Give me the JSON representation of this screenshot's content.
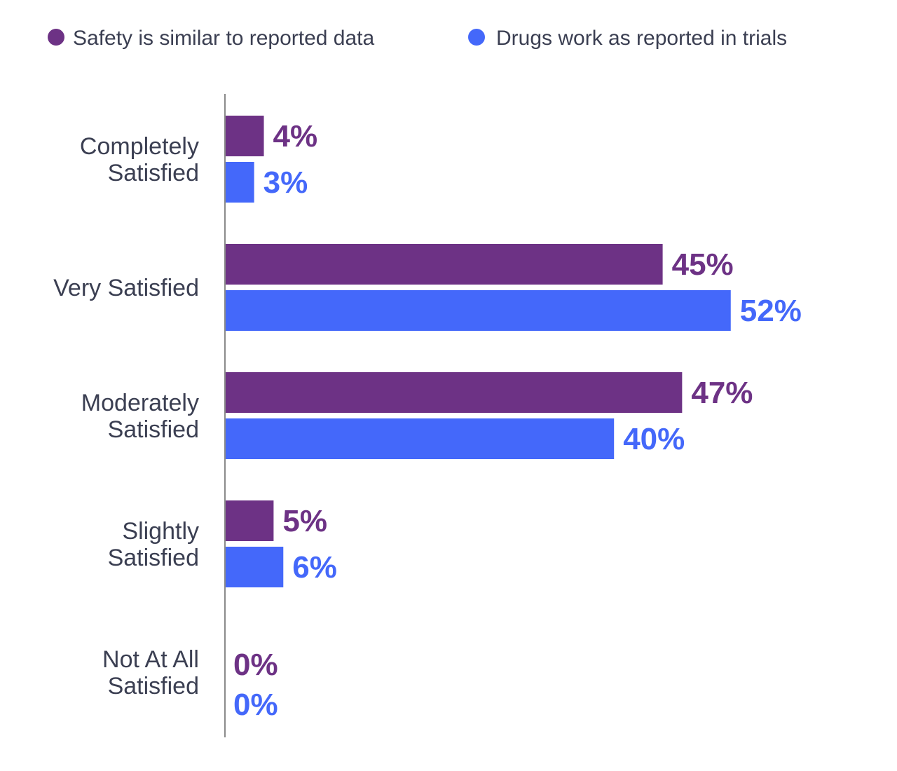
{
  "chart_data": {
    "type": "bar",
    "orientation": "horizontal",
    "categories": [
      [
        "Completely",
        "Satisfied"
      ],
      [
        "Very Satisfied"
      ],
      [
        "Moderately",
        "Satisfied"
      ],
      [
        "Slightly",
        "Satisfied"
      ],
      [
        "Not At All",
        "Satisfied"
      ]
    ],
    "series": [
      {
        "name": "Safety is similar to reported data",
        "color": "#6d3285",
        "values": [
          4,
          45,
          47,
          5,
          0
        ],
        "labels": [
          "4%",
          "45%",
          "47%",
          "5%",
          "0%"
        ]
      },
      {
        "name": "Drugs work as reported in trials",
        "color": "#4468fa",
        "values": [
          3,
          52,
          40,
          6,
          0
        ],
        "labels": [
          "3%",
          "52%",
          "40%",
          "6%",
          "0%"
        ]
      }
    ],
    "xlim": [
      0,
      55
    ],
    "legend_position": "top",
    "grid": false,
    "title": "",
    "xlabel": "",
    "ylabel": ""
  }
}
